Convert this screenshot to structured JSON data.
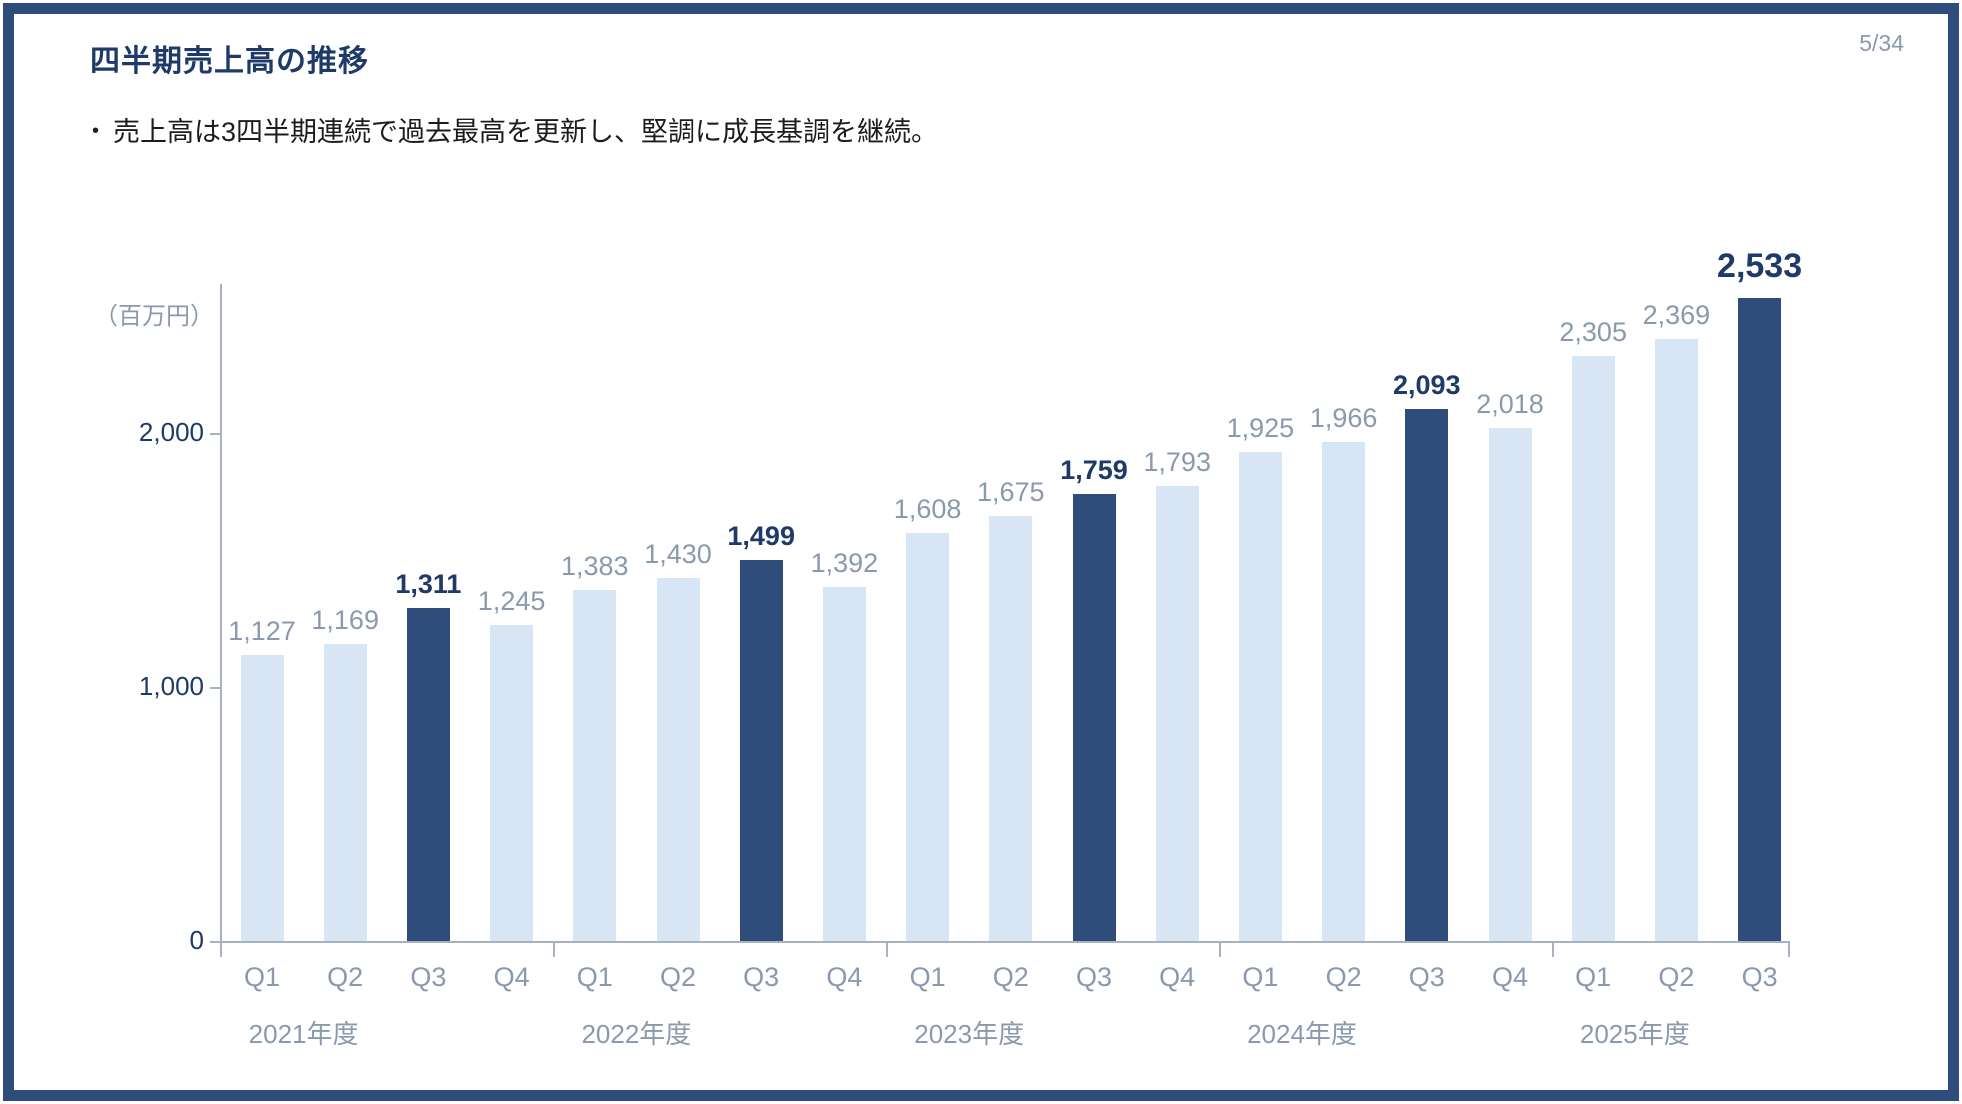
{
  "slide": {
    "title": "四半期売上高の推移",
    "page_number": "5/34",
    "bullet_marker": "•",
    "bullet_text": "売上高は3四半期連続で過去最高を更新し、堅調に成長基調を継続。"
  },
  "colors": {
    "frame": "#2e4d7b",
    "title_text": "#1e3a68",
    "bar_light": "#d7e5f4",
    "bar_dark": "#2e4d7b",
    "muted_text": "#8b99ae",
    "axis_line": "#a7b1c0",
    "body_text": "#1c1c1c"
  },
  "chart_data": {
    "type": "bar",
    "title": "四半期売上高の推移",
    "unit_label": "（百万円）",
    "xlabel": "",
    "ylabel": "百万円",
    "ylim": [
      0,
      2600
    ],
    "grid": false,
    "legend": "none",
    "y_ticks": [
      {
        "value": 0,
        "label": "0"
      },
      {
        "value": 1000,
        "label": "1,000"
      },
      {
        "value": 2000,
        "label": "2,000"
      }
    ],
    "highlight_rule": "Q3 bars are dark navy with bold navy value labels; all other bars light blue with gray value labels; final bar label enlarged",
    "bars": [
      {
        "fiscal_year": "2021年度",
        "quarter": "Q1",
        "value": 1127,
        "label": "1,127",
        "highlight": false,
        "emphasis": false
      },
      {
        "fiscal_year": "2021年度",
        "quarter": "Q2",
        "value": 1169,
        "label": "1,169",
        "highlight": false,
        "emphasis": false
      },
      {
        "fiscal_year": "2021年度",
        "quarter": "Q3",
        "value": 1311,
        "label": "1,311",
        "highlight": true,
        "emphasis": false
      },
      {
        "fiscal_year": "2021年度",
        "quarter": "Q4",
        "value": 1245,
        "label": "1,245",
        "highlight": false,
        "emphasis": false
      },
      {
        "fiscal_year": "2022年度",
        "quarter": "Q1",
        "value": 1383,
        "label": "1,383",
        "highlight": false,
        "emphasis": false
      },
      {
        "fiscal_year": "2022年度",
        "quarter": "Q2",
        "value": 1430,
        "label": "1,430",
        "highlight": false,
        "emphasis": false
      },
      {
        "fiscal_year": "2022年度",
        "quarter": "Q3",
        "value": 1499,
        "label": "1,499",
        "highlight": true,
        "emphasis": false
      },
      {
        "fiscal_year": "2022年度",
        "quarter": "Q4",
        "value": 1392,
        "label": "1,392",
        "highlight": false,
        "emphasis": false
      },
      {
        "fiscal_year": "2023年度",
        "quarter": "Q1",
        "value": 1608,
        "label": "1,608",
        "highlight": false,
        "emphasis": false
      },
      {
        "fiscal_year": "2023年度",
        "quarter": "Q2",
        "value": 1675,
        "label": "1,675",
        "highlight": false,
        "emphasis": false
      },
      {
        "fiscal_year": "2023年度",
        "quarter": "Q3",
        "value": 1759,
        "label": "1,759",
        "highlight": true,
        "emphasis": false
      },
      {
        "fiscal_year": "2023年度",
        "quarter": "Q4",
        "value": 1793,
        "label": "1,793",
        "highlight": false,
        "emphasis": false
      },
      {
        "fiscal_year": "2024年度",
        "quarter": "Q1",
        "value": 1925,
        "label": "1,925",
        "highlight": false,
        "emphasis": false
      },
      {
        "fiscal_year": "2024年度",
        "quarter": "Q2",
        "value": 1966,
        "label": "1,966",
        "highlight": false,
        "emphasis": false
      },
      {
        "fiscal_year": "2024年度",
        "quarter": "Q3",
        "value": 2093,
        "label": "2,093",
        "highlight": true,
        "emphasis": false
      },
      {
        "fiscal_year": "2024年度",
        "quarter": "Q4",
        "value": 2018,
        "label": "2,018",
        "highlight": false,
        "emphasis": false
      },
      {
        "fiscal_year": "2025年度",
        "quarter": "Q1",
        "value": 2305,
        "label": "2,305",
        "highlight": false,
        "emphasis": false
      },
      {
        "fiscal_year": "2025年度",
        "quarter": "Q2",
        "value": 2369,
        "label": "2,369",
        "highlight": false,
        "emphasis": false
      },
      {
        "fiscal_year": "2025年度",
        "quarter": "Q3",
        "value": 2533,
        "label": "2,533",
        "highlight": true,
        "emphasis": true
      }
    ]
  }
}
